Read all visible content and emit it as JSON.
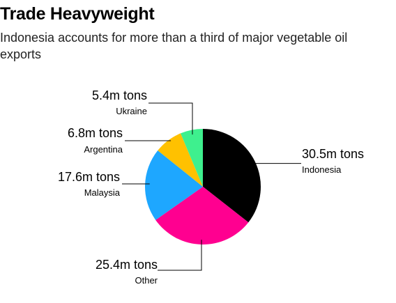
{
  "title": "Trade Heavyweight",
  "subtitle": "Indonesia accounts for more than a third of major vegetable oil exports",
  "chart_data": {
    "type": "pie",
    "title": "Trade Heavyweight",
    "subtitle": "Indonesia accounts for more than a third of major vegetable oil exports",
    "unit": "m tons",
    "slices": [
      {
        "name": "Indonesia",
        "value": 30.5,
        "label": "30.5m tons",
        "color": "#000000"
      },
      {
        "name": "Other",
        "value": 25.4,
        "label": "25.4m tons",
        "color": "#ff0090"
      },
      {
        "name": "Malaysia",
        "value": 17.6,
        "label": "17.6m tons",
        "color": "#1ea7ff"
      },
      {
        "name": "Argentina",
        "value": 6.8,
        "label": "6.8m tons",
        "color": "#ffc100"
      },
      {
        "name": "Ukraine",
        "value": 5.4,
        "label": "5.4m tons",
        "color": "#3ef08e"
      }
    ],
    "start_angle": "12 o'clock",
    "direction": "clockwise"
  }
}
